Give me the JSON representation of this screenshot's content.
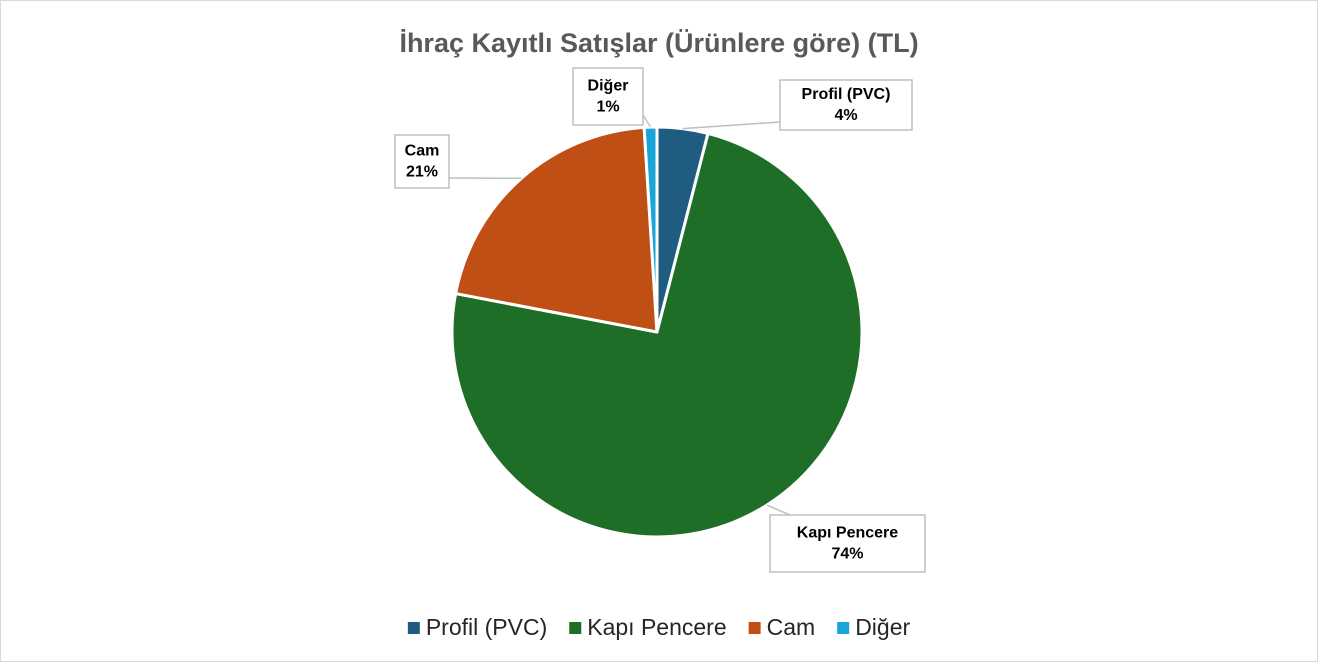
{
  "chart_data": {
    "type": "pie",
    "title": "İhraç Kayıtlı Satışlar (Ürünlere göre) (TL)",
    "categories": [
      "Profil (PVC)",
      "Kapı Pencere",
      "Cam",
      "Diğer"
    ],
    "values": [
      4,
      74,
      21,
      1
    ],
    "value_labels": [
      "4%",
      "74%",
      "21%",
      "1%"
    ],
    "colors": [
      "#1f5c80",
      "#1e6e28",
      "#c04f15",
      "#1aa4d8"
    ],
    "legend": "bottom"
  }
}
